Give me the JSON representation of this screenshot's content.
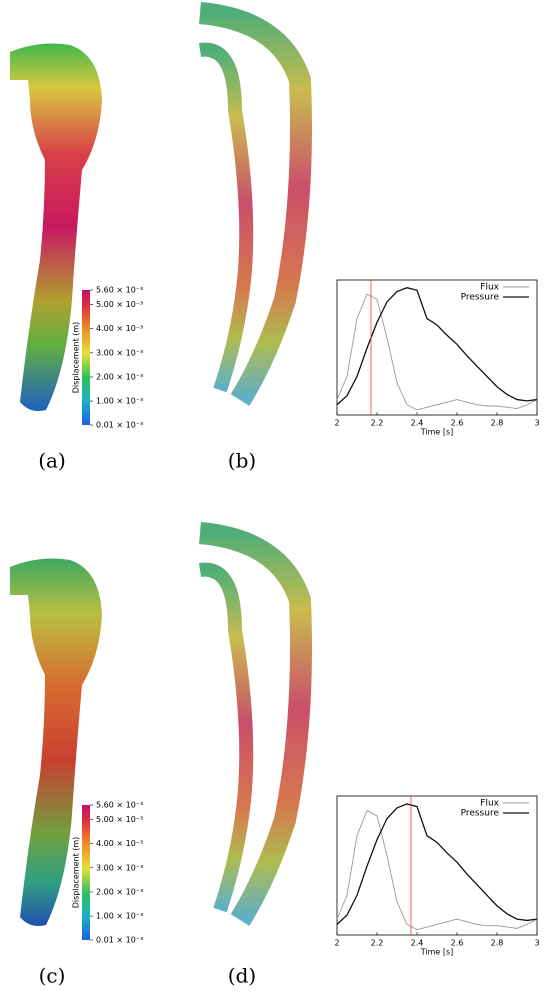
{
  "figure": {
    "rows": [
      {
        "labels": [
          "(a)",
          "(b)"
        ],
        "colorbar": {
          "title": "Displacement (m)",
          "lim": [
            1e-05,
            0.0056
          ],
          "ticks": [
            {
              "value": 1e-05,
              "label": "0.01 × 10⁻³"
            },
            {
              "value": 0.001,
              "label": "1.00 × 10⁻³"
            },
            {
              "value": 0.002,
              "label": "2.00 × 10⁻³"
            },
            {
              "value": 0.003,
              "label": "3.00 × 10⁻³"
            },
            {
              "value": 0.004,
              "label": "4.00 × 10⁻³"
            },
            {
              "value": 0.005,
              "label": "5.00 × 10⁻³"
            },
            {
              "value": 0.0056,
              "label": "5.60 × 10⁻³"
            }
          ]
        }
      },
      {
        "labels": [
          "(c)",
          "(d)"
        ],
        "colorbar": {
          "title": "Displacement (m)",
          "lim": [
            1e-05,
            0.0056
          ],
          "ticks": [
            {
              "value": 1e-05,
              "label": "0.01 × 10⁻³"
            },
            {
              "value": 0.001,
              "label": "1.00 × 10⁻³"
            },
            {
              "value": 0.002,
              "label": "2.00 × 10⁻³"
            },
            {
              "value": 0.003,
              "label": "3.00 × 10⁻³"
            },
            {
              "value": 0.004,
              "label": "4.00 × 10⁻³"
            },
            {
              "value": 0.005,
              "label": "5.00 × 10⁻³"
            },
            {
              "value": 0.0056,
              "label": "5.60 × 10⁻³"
            }
          ]
        }
      }
    ]
  },
  "chart_data": [
    {
      "type": "line",
      "xlabel": "Time [s]",
      "xlim": [
        2,
        3
      ],
      "xticks": [
        2,
        2.2,
        2.4,
        2.6,
        2.8,
        3
      ],
      "ylim": [
        0,
        1.05
      ],
      "legend": "upper right",
      "x": [
        2.0,
        2.05,
        2.1,
        2.15,
        2.2,
        2.25,
        2.3,
        2.35,
        2.4,
        2.45,
        2.5,
        2.55,
        2.6,
        2.65,
        2.7,
        2.75,
        2.8,
        2.85,
        2.9,
        2.95,
        3.0
      ],
      "series": [
        {
          "name": "Flux",
          "color": "#999999",
          "values": [
            0.12,
            0.3,
            0.75,
            0.94,
            0.9,
            0.6,
            0.25,
            0.08,
            0.04,
            0.06,
            0.08,
            0.1,
            0.12,
            0.1,
            0.08,
            0.07,
            0.07,
            0.06,
            0.05,
            0.08,
            0.12
          ]
        },
        {
          "name": "Pressure",
          "color": "#111111",
          "values": [
            0.08,
            0.15,
            0.3,
            0.52,
            0.72,
            0.88,
            0.96,
            0.99,
            0.97,
            0.75,
            0.7,
            0.62,
            0.55,
            0.46,
            0.38,
            0.3,
            0.22,
            0.16,
            0.12,
            0.11,
            0.12
          ]
        }
      ],
      "vline": 2.17,
      "vline_color": "#e8403a"
    },
    {
      "type": "line",
      "xlabel": "Time [s]",
      "xlim": [
        2,
        3
      ],
      "xticks": [
        2,
        2.2,
        2.4,
        2.6,
        2.8,
        3
      ],
      "ylim": [
        0,
        1.05
      ],
      "legend": "upper right",
      "x": [
        2.0,
        2.05,
        2.1,
        2.15,
        2.2,
        2.25,
        2.3,
        2.35,
        2.4,
        2.45,
        2.5,
        2.55,
        2.6,
        2.65,
        2.7,
        2.75,
        2.8,
        2.85,
        2.9,
        2.95,
        3.0
      ],
      "series": [
        {
          "name": "Flux",
          "color": "#999999",
          "values": [
            0.12,
            0.3,
            0.75,
            0.94,
            0.9,
            0.6,
            0.25,
            0.08,
            0.04,
            0.06,
            0.08,
            0.1,
            0.12,
            0.1,
            0.08,
            0.07,
            0.07,
            0.06,
            0.05,
            0.08,
            0.12
          ]
        },
        {
          "name": "Pressure",
          "color": "#111111",
          "values": [
            0.08,
            0.15,
            0.3,
            0.52,
            0.72,
            0.88,
            0.96,
            0.99,
            0.97,
            0.75,
            0.7,
            0.62,
            0.55,
            0.46,
            0.38,
            0.3,
            0.22,
            0.16,
            0.12,
            0.11,
            0.12
          ]
        }
      ],
      "vline": 2.37,
      "vline_color": "#e8403a"
    }
  ]
}
